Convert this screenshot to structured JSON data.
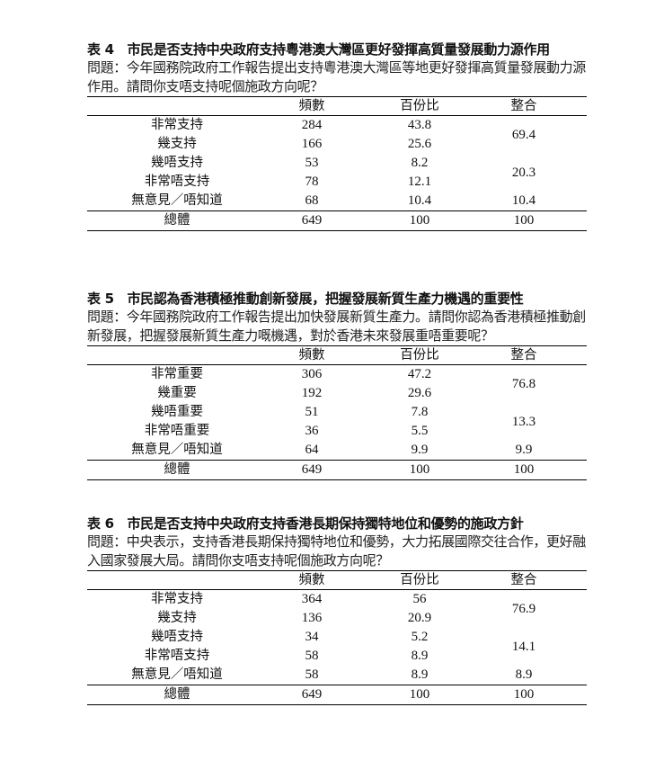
{
  "tables": [
    {
      "title": "表 4　市民是否支持中央政府支持粵港澳大灣區更好發揮高質量發展動力源作用",
      "question": "問題：今年國務院政府工作報告提出支持粵港澳大灣區等地更好發揮高質量發展動力源作用。請問你支唔支持呢個施政方向呢？",
      "headers": [
        "",
        "頻數",
        "百份比",
        "整合"
      ],
      "rows": [
        {
          "label": "非常支持",
          "freq": "284",
          "pct": "43.8"
        },
        {
          "label": "幾支持",
          "freq": "166",
          "pct": "25.6"
        },
        {
          "label": "幾唔支持",
          "freq": "53",
          "pct": "8.2"
        },
        {
          "label": "非常唔支持",
          "freq": "78",
          "pct": "12.1"
        },
        {
          "label": "無意見／唔知道",
          "freq": "68",
          "pct": "10.4"
        }
      ],
      "merged": [
        "69.4",
        "20.3",
        "10.4"
      ],
      "total": {
        "label": "總體",
        "freq": "649",
        "pct": "100",
        "merged": "100"
      }
    },
    {
      "title": "表 5　市民認為香港積極推動創新發展，把握發展新質生產力機遇的重要性",
      "question": "問題：今年國務院政府工作報告提出加快發展新質生產力。請問你認為香港積極推動創新發展，把握發展新質生產力嘅機遇，對於香港未來發展重唔重要呢？",
      "headers": [
        "",
        "頻數",
        "百份比",
        "整合"
      ],
      "rows": [
        {
          "label": "非常重要",
          "freq": "306",
          "pct": "47.2"
        },
        {
          "label": "幾重要",
          "freq": "192",
          "pct": "29.6"
        },
        {
          "label": "幾唔重要",
          "freq": "51",
          "pct": "7.8"
        },
        {
          "label": "非常唔重要",
          "freq": "36",
          "pct": "5.5"
        },
        {
          "label": "無意見／唔知道",
          "freq": "64",
          "pct": "9.9"
        }
      ],
      "merged": [
        "76.8",
        "13.3",
        "9.9"
      ],
      "total": {
        "label": "總體",
        "freq": "649",
        "pct": "100",
        "merged": "100"
      }
    },
    {
      "title": "表 6　市民是否支持中央政府支持香港長期保持獨特地位和優勢的施政方針",
      "question": "問題：中央表示，支持香港長期保持獨特地位和優勢，大力拓展國際交往合作，更好融入國家發展大局。請問你支唔支持呢個施政方向呢？",
      "headers": [
        "",
        "頻數",
        "百份比",
        "整合"
      ],
      "rows": [
        {
          "label": "非常支持",
          "freq": "364",
          "pct": "56"
        },
        {
          "label": "幾支持",
          "freq": "136",
          "pct": "20.9"
        },
        {
          "label": "幾唔支持",
          "freq": "34",
          "pct": "5.2"
        },
        {
          "label": "非常唔支持",
          "freq": "58",
          "pct": "8.9"
        },
        {
          "label": "無意見／唔知道",
          "freq": "58",
          "pct": "8.9"
        }
      ],
      "merged": [
        "76.9",
        "14.1",
        "8.9"
      ],
      "total": {
        "label": "總體",
        "freq": "649",
        "pct": "100",
        "merged": "100"
      }
    }
  ]
}
